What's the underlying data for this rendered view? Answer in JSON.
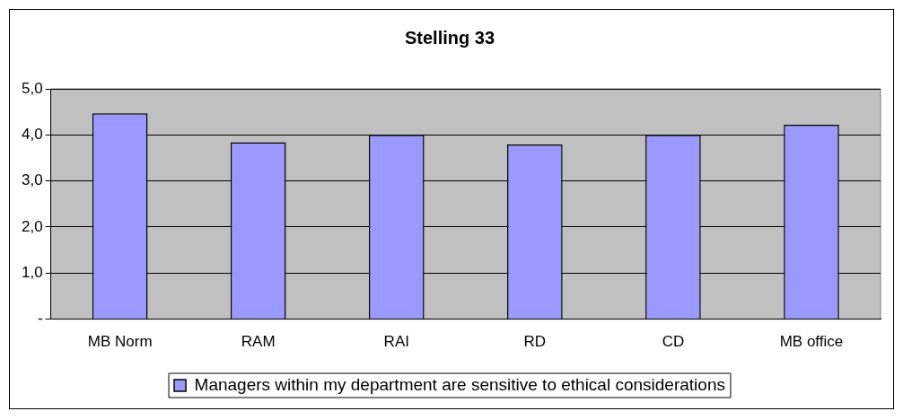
{
  "chart_data": {
    "type": "bar",
    "title": "Stelling 33",
    "categories": [
      "MB Norm",
      "RAM",
      "RAI",
      "RD",
      "CD",
      "MB office"
    ],
    "series": [
      {
        "name": "Managers within my department are sensitive to ethical considerations",
        "color": "#9999ff",
        "values": [
          4.47,
          3.84,
          4.0,
          3.79,
          4.0,
          4.22
        ]
      }
    ],
    "ylim": [
      0,
      5
    ],
    "yticks": [
      {
        "value": 0,
        "label": "-"
      },
      {
        "value": 1,
        "label": "1,0"
      },
      {
        "value": 2,
        "label": "2,0"
      },
      {
        "value": 3,
        "label": "3,0"
      },
      {
        "value": 4,
        "label": "4,0"
      },
      {
        "value": 5,
        "label": "5,0"
      }
    ],
    "grid": "y",
    "legend": "bottom"
  }
}
